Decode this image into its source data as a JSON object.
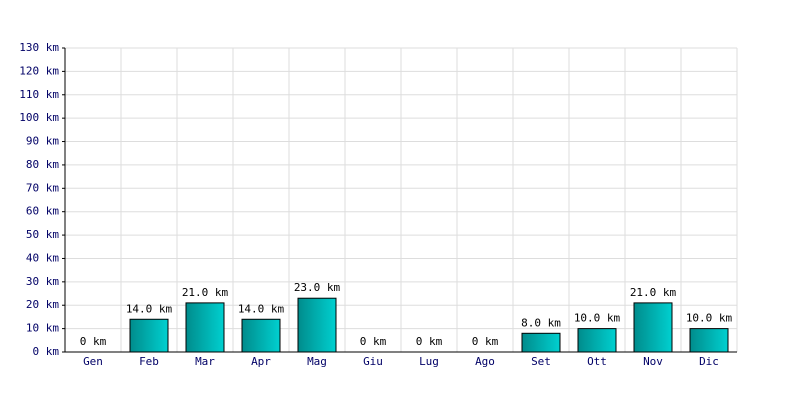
{
  "chart_data": {
    "type": "bar",
    "categories": [
      "Gen",
      "Feb",
      "Mar",
      "Apr",
      "Mag",
      "Giu",
      "Lug",
      "Ago",
      "Set",
      "Ott",
      "Nov",
      "Dic"
    ],
    "values": [
      0,
      14,
      21,
      14,
      23,
      0,
      0,
      0,
      8,
      10,
      21,
      10
    ],
    "value_labels": [
      "0 km",
      "14.0 km",
      "21.0 km",
      "14.0 km",
      "23.0 km",
      "0 km",
      "0 km",
      "0 km",
      "8.0 km",
      "10.0 km",
      "21.0 km",
      "10.0 km"
    ],
    "color": "#00d0d0",
    "ylim": [
      0,
      130
    ],
    "yticks": [
      {
        "value": 0,
        "label": "0 km"
      },
      {
        "value": 10,
        "label": "10 km"
      },
      {
        "value": 20,
        "label": "20 km"
      },
      {
        "value": 30,
        "label": "30 km"
      },
      {
        "value": 40,
        "label": "40 km"
      },
      {
        "value": 50,
        "label": "50 km"
      },
      {
        "value": 60,
        "label": "60 km"
      },
      {
        "value": 70,
        "label": "70 km"
      },
      {
        "value": 80,
        "label": "80 km"
      },
      {
        "value": 90,
        "label": "90 km"
      },
      {
        "value": 100,
        "label": "100 km"
      },
      {
        "value": 110,
        "label": "110 km"
      },
      {
        "value": 120,
        "label": "120 km"
      },
      {
        "value": 130,
        "label": "130 km"
      }
    ],
    "grid": true
  }
}
